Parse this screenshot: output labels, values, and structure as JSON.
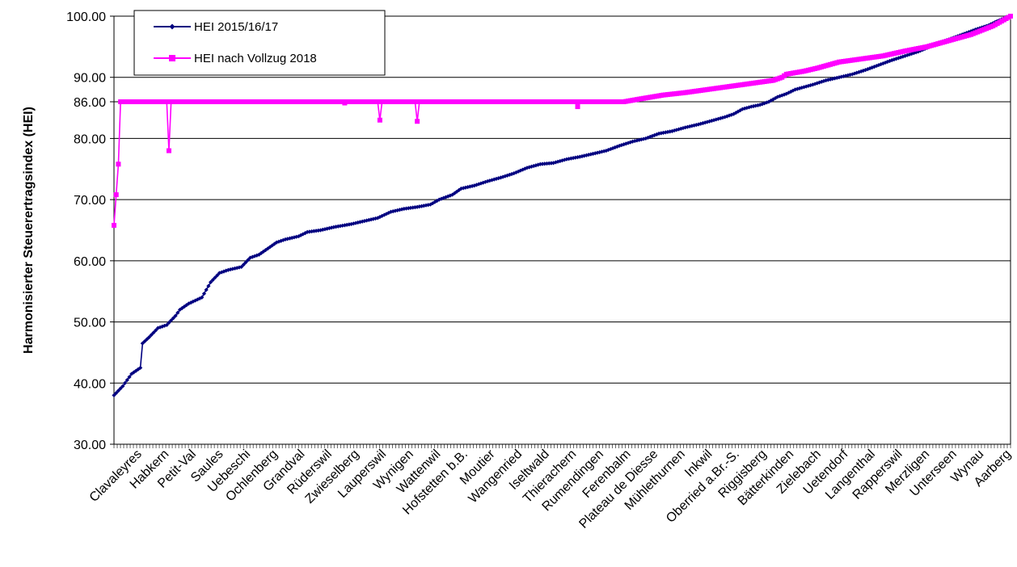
{
  "chart_data": {
    "type": "line",
    "title": "",
    "xlabel": "",
    "ylabel": "Harmonisierter Steuerertragsindex (HEI)",
    "ylim": [
      30,
      100
    ],
    "yticks": [
      30,
      40,
      50,
      60,
      70,
      80,
      86,
      90,
      100
    ],
    "ytick_labels": [
      "30.00",
      "40.00",
      "50.00",
      "60.00",
      "70.00",
      "80.00",
      "86.00",
      "90.00",
      "100.00"
    ],
    "grid": true,
    "legend_position": "top-left",
    "x_tick_labels": [
      "Clavaleyres",
      "Habkern",
      "Petit-Val",
      "Saules",
      "Uebeschi",
      "Ochlenberg",
      "Grandval",
      "Rüderswil",
      "Zwieselberg",
      "Lauperswil",
      "Wynigen",
      "Wattenwil",
      "Hofstetten b.B.",
      "Moutier",
      "Wangenried",
      "Iseltwald",
      "Thierachern",
      "Rumendingen",
      "Ferenbalm",
      "Plateau de Diesse",
      "Mühlethurnen",
      "Inkwil",
      "Oberried a.Br.-S.",
      "Riggisberg",
      "Bätterkinden",
      "Zielebach",
      "Uetendorf",
      "Langenthal",
      "Rapperswil",
      "Merzligen",
      "Unterseen",
      "Wynau",
      "Aarberg"
    ],
    "series": [
      {
        "name": "HEI 2015/16/17",
        "color": "#000080",
        "marker": "diamond",
        "points": [
          [
            0,
            38.0
          ],
          [
            4,
            39.5
          ],
          [
            8,
            41.5
          ],
          [
            12,
            42.5
          ],
          [
            13,
            46.5
          ],
          [
            16,
            47.5
          ],
          [
            20,
            49.0
          ],
          [
            24,
            49.5
          ],
          [
            28,
            51.0
          ],
          [
            30,
            52.0
          ],
          [
            34,
            53.0
          ],
          [
            40,
            54.0
          ],
          [
            44,
            56.5
          ],
          [
            48,
            58.0
          ],
          [
            52,
            58.5
          ],
          [
            58,
            59.0
          ],
          [
            62,
            60.5
          ],
          [
            66,
            61.0
          ],
          [
            70,
            62.0
          ],
          [
            74,
            63.0
          ],
          [
            78,
            63.5
          ],
          [
            84,
            64.0
          ],
          [
            88,
            64.7
          ],
          [
            94,
            65.0
          ],
          [
            100,
            65.5
          ],
          [
            108,
            66.0
          ],
          [
            114,
            66.5
          ],
          [
            120,
            67.0
          ],
          [
            126,
            68.0
          ],
          [
            132,
            68.5
          ],
          [
            138,
            68.8
          ],
          [
            144,
            69.2
          ],
          [
            148,
            70.0
          ],
          [
            154,
            70.8
          ],
          [
            158,
            71.8
          ],
          [
            164,
            72.3
          ],
          [
            170,
            73.0
          ],
          [
            176,
            73.6
          ],
          [
            182,
            74.3
          ],
          [
            188,
            75.2
          ],
          [
            194,
            75.8
          ],
          [
            200,
            76.0
          ],
          [
            206,
            76.6
          ],
          [
            212,
            77.0
          ],
          [
            218,
            77.5
          ],
          [
            224,
            78.0
          ],
          [
            230,
            78.8
          ],
          [
            236,
            79.5
          ],
          [
            242,
            80.0
          ],
          [
            248,
            80.8
          ],
          [
            254,
            81.2
          ],
          [
            260,
            81.8
          ],
          [
            266,
            82.3
          ],
          [
            272,
            82.9
          ],
          [
            278,
            83.5
          ],
          [
            282,
            84.0
          ],
          [
            286,
            84.8
          ],
          [
            290,
            85.2
          ],
          [
            294,
            85.5
          ],
          [
            298,
            86.0
          ],
          [
            302,
            86.8
          ],
          [
            306,
            87.3
          ],
          [
            310,
            88.0
          ],
          [
            314,
            88.4
          ],
          [
            318,
            88.8
          ],
          [
            324,
            89.5
          ],
          [
            330,
            90.0
          ],
          [
            336,
            90.5
          ],
          [
            342,
            91.2
          ],
          [
            348,
            92.0
          ],
          [
            354,
            92.8
          ],
          [
            360,
            93.5
          ],
          [
            366,
            94.2
          ],
          [
            370,
            94.8
          ],
          [
            374,
            95.5
          ],
          [
            380,
            96.2
          ],
          [
            386,
            97.0
          ],
          [
            392,
            97.8
          ],
          [
            398,
            98.5
          ],
          [
            402,
            99.2
          ],
          [
            406,
            99.8
          ],
          [
            408,
            100.0
          ]
        ]
      },
      {
        "name": "HEI nach Vollzug 2018",
        "color": "#ff00ff",
        "marker": "square",
        "points": [
          [
            0,
            65.8
          ],
          [
            2,
            75.8
          ],
          [
            3,
            86.0
          ],
          [
            24,
            86.0
          ],
          [
            25,
            78.0
          ],
          [
            26,
            86.0
          ],
          [
            104,
            86.0
          ],
          [
            105,
            85.8
          ],
          [
            106,
            86.0
          ],
          [
            120,
            86.0
          ],
          [
            121,
            83.0
          ],
          [
            122,
            86.0
          ],
          [
            137,
            86.0
          ],
          [
            138,
            82.8
          ],
          [
            139,
            86.0
          ],
          [
            210,
            86.0
          ],
          [
            211,
            85.2
          ],
          [
            212,
            86.0
          ],
          [
            232,
            86.0
          ],
          [
            240,
            86.5
          ],
          [
            250,
            87.1
          ],
          [
            260,
            87.5
          ],
          [
            270,
            88.0
          ],
          [
            280,
            88.5
          ],
          [
            290,
            89.0
          ],
          [
            300,
            89.5
          ],
          [
            304,
            90.0
          ],
          [
            306,
            90.5
          ],
          [
            314,
            91.0
          ],
          [
            320,
            91.5
          ],
          [
            326,
            92.1
          ],
          [
            330,
            92.5
          ],
          [
            340,
            93.0
          ],
          [
            350,
            93.5
          ],
          [
            360,
            94.3
          ],
          [
            370,
            95.0
          ],
          [
            380,
            96.0
          ],
          [
            390,
            97.0
          ],
          [
            400,
            98.4
          ],
          [
            408,
            100.0
          ]
        ]
      }
    ]
  }
}
